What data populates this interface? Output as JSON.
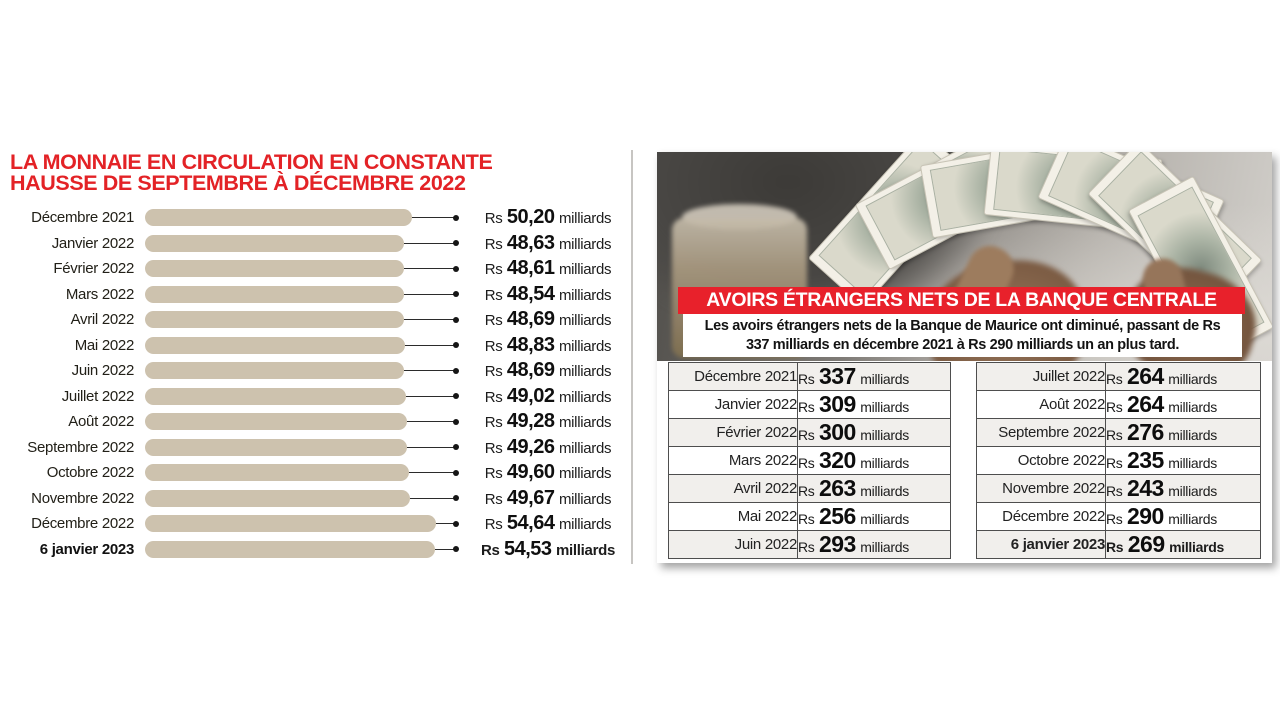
{
  "chart_data": [
    {
      "type": "bar",
      "orientation": "horizontal",
      "title": "LA MONNAIE EN CIRCULATION EN CONSTANTE HAUSSE DE SEPTEMBRE À DÉCEMBRE 2022",
      "categories": [
        "Décembre 2021",
        "Janvier 2022",
        "Février 2022",
        "Mars 2022",
        "Avril 2022",
        "Mai 2022",
        "Juin 2022",
        "Juillet 2022",
        "Août 2022",
        "Septembre 2022",
        "Octobre 2022",
        "Novembre 2022",
        "Décembre 2022",
        "6 janvier 2023"
      ],
      "values": [
        50.2,
        48.63,
        48.61,
        48.54,
        48.69,
        48.83,
        48.69,
        49.02,
        49.28,
        49.26,
        49.6,
        49.67,
        54.64,
        54.53
      ],
      "unit": "Rs milliards",
      "xlim": [
        0,
        55
      ],
      "bar_color": "#cdc2ae",
      "legend": "none",
      "grid": false
    },
    {
      "type": "table",
      "title": "AVOIRS ÉTRANGERS NETS DE LA BANQUE CENTRALE",
      "categories": [
        "Décembre 2021",
        "Janvier 2022",
        "Février 2022",
        "Mars 2022",
        "Avril 2022",
        "Mai 2022",
        "Juin 2022",
        "Juillet 2022",
        "Août 2022",
        "Septembre 2022",
        "Octobre 2022",
        "Novembre 2022",
        "Décembre 2022",
        "6 janvier 2023"
      ],
      "values": [
        337,
        309,
        300,
        320,
        263,
        256,
        293,
        264,
        264,
        276,
        235,
        243,
        290,
        269
      ],
      "unit": "Rs milliards"
    }
  ],
  "left_chart": {
    "title_line1": "LA MONNAIE EN CIRCULATION EN CONSTANTE",
    "title_line2": "HAUSSE DE SEPTEMBRE À DÉCEMBRE 2022",
    "title_color": "#e32226",
    "bar_color": "#cdc2ae",
    "currency_prefix": "Rs",
    "unit": "milliards",
    "rows": [
      {
        "label": "Décembre 2021",
        "value": "50,20",
        "numeric": 50.2
      },
      {
        "label": "Janvier 2022",
        "value": "48,63",
        "numeric": 48.63
      },
      {
        "label": "Février 2022",
        "value": "48,61",
        "numeric": 48.61
      },
      {
        "label": "Mars 2022",
        "value": "48,54",
        "numeric": 48.54
      },
      {
        "label": "Avril 2022",
        "value": "48,69",
        "numeric": 48.69
      },
      {
        "label": "Mai 2022",
        "value": "48,83",
        "numeric": 48.83
      },
      {
        "label": "Juin 2022",
        "value": "48,69",
        "numeric": 48.69
      },
      {
        "label": "Juillet 2022",
        "value": "49,02",
        "numeric": 49.02
      },
      {
        "label": "Août 2022",
        "value": "49,28",
        "numeric": 49.28
      },
      {
        "label": "Septembre 2022",
        "value": "49,26",
        "numeric": 49.26
      },
      {
        "label": "Octobre 2022",
        "value": "49,60",
        "numeric": 49.6
      },
      {
        "label": "Novembre 2022",
        "value": "49,67",
        "numeric": 49.67
      },
      {
        "label": "Décembre 2022",
        "value": "54,64",
        "numeric": 54.64
      },
      {
        "label": "6 janvier 2023",
        "value": "54,53",
        "numeric": 54.53
      }
    ]
  },
  "right_panel": {
    "banner": "AVOIRS ÉTRANGERS NETS DE LA BANQUE CENTRALE",
    "banner_color": "#e8212b",
    "subtitle": "Les avoirs étrangers nets de la Banque de Maurice ont diminué, passant de Rs 337 milliards en décembre 2021 à Rs 290 milliards un an plus tard.",
    "currency_prefix": "Rs",
    "unit": "milliards",
    "photo_description": "hands-counting-us-dollar-banknotes",
    "table_left": [
      {
        "label": "Décembre 2021",
        "value": "337"
      },
      {
        "label": "Janvier 2022",
        "value": "309"
      },
      {
        "label": "Février 2022",
        "value": "300"
      },
      {
        "label": "Mars 2022",
        "value": "320"
      },
      {
        "label": "Avril 2022",
        "value": "263"
      },
      {
        "label": "Mai 2022",
        "value": "256"
      },
      {
        "label": "Juin 2022",
        "value": "293"
      }
    ],
    "table_right": [
      {
        "label": "Juillet 2022",
        "value": "264"
      },
      {
        "label": "Août 2022",
        "value": "264"
      },
      {
        "label": "Septembre 2022",
        "value": "276"
      },
      {
        "label": "Octobre 2022",
        "value": "235"
      },
      {
        "label": "Novembre 2022",
        "value": "243"
      },
      {
        "label": "Décembre 2022",
        "value": "290"
      },
      {
        "label": "6 janvier 2023",
        "value": "269"
      }
    ]
  }
}
